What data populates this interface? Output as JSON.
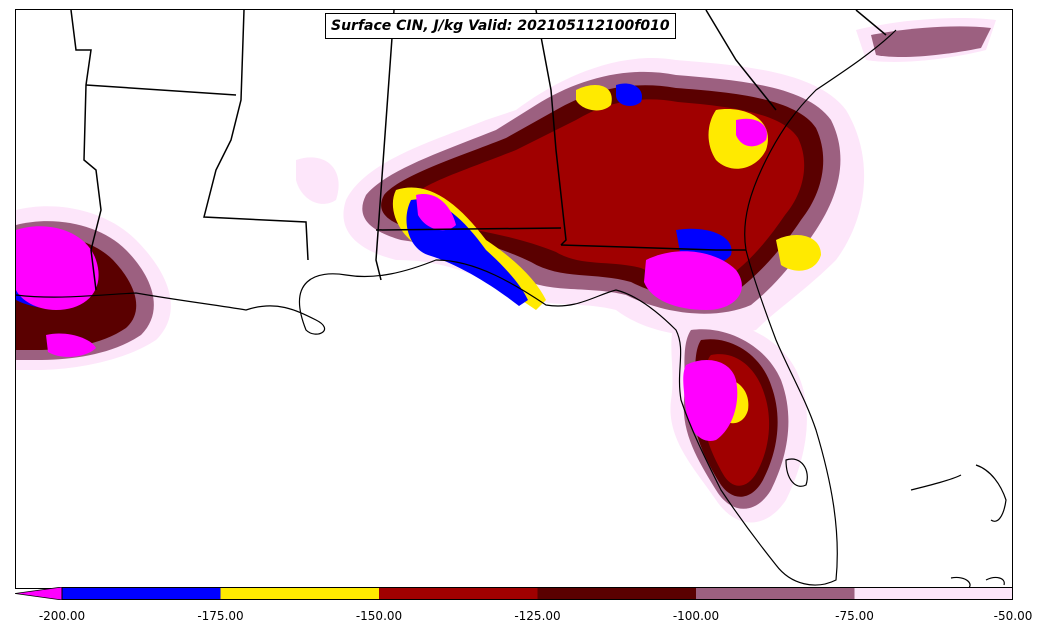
{
  "title": "Surface CIN, J/kg Valid: 202105112100f010",
  "colorbar": {
    "extend": "min",
    "ticks": [
      "-200.00",
      "-175.00",
      "-150.00",
      "-125.00",
      "-100.00",
      "-75.00",
      "-50.00"
    ],
    "levels": [
      -200,
      -175,
      -150,
      -125,
      -100,
      -75,
      -50
    ],
    "under_color": "#ff00ff",
    "colors": [
      "#0000ff",
      "#ffea00",
      "#a00000",
      "#5a0000",
      "#9c6080",
      "#fde6fa"
    ]
  },
  "map": {
    "region": "Gulf Coast / Southeastern United States",
    "borders": "state borders and coastline in black"
  }
}
